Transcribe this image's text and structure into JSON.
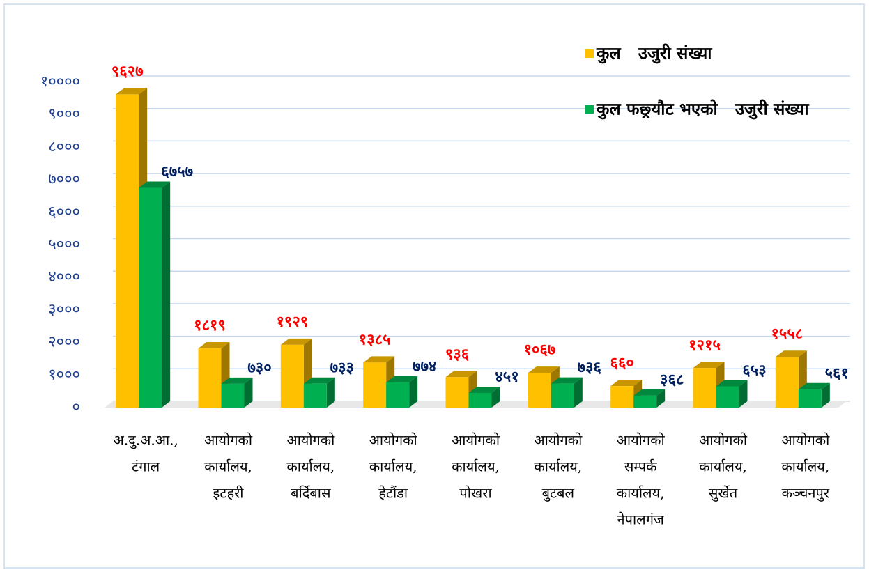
{
  "chart_data": {
    "type": "bar3d",
    "categories": [
      [
        "अ.दु.अ.आ.,",
        "टंगाल"
      ],
      [
        "आयोगको",
        "कार्यालय,",
        "इटहरी"
      ],
      [
        "आयोगको",
        "कार्यालय,",
        "बर्दिबास"
      ],
      [
        "आयोगको",
        "कार्यालय,",
        "हेटौंडा"
      ],
      [
        "आयोगको",
        "कार्यालय,",
        "पोखरा"
      ],
      [
        "आयोगको",
        "कार्यालय,",
        "बुटबल"
      ],
      [
        "आयोगको",
        "सम्पर्क",
        "कार्यालय,",
        "नेपालगंज"
      ],
      [
        "आयोगको",
        "कार्यालय,",
        "सुर्खेत"
      ],
      [
        "आयोगको",
        "कार्यालय,",
        "कञ्चनपुर"
      ]
    ],
    "series": [
      {
        "name": "कुल   उजुरी संख्या",
        "color": "#ffc000",
        "values": [
          9627,
          1819,
          1929,
          1385,
          936,
          1067,
          660,
          1215,
          1558
        ],
        "value_labels": [
          "९६२७",
          "१८१९",
          "१९२९",
          "१३८५",
          "९३६",
          "१०६७",
          "६६०",
          "१२१५",
          "१५५८"
        ],
        "label_color": "#ff0000"
      },
      {
        "name": "कुल फछ्र्यौट भएको   उजुरी संख्या",
        "color": "#00b050",
        "values": [
          6757,
          730,
          733,
          774,
          451,
          736,
          368,
          653,
          561
        ],
        "value_labels": [
          "६७५७",
          "७३०",
          "७३३",
          "७७४",
          "४५१",
          "७३६",
          "३६८",
          "६५३",
          "५६१"
        ],
        "label_color": "#002060"
      }
    ],
    "ylim": [
      0,
      10000
    ],
    "yticks": [
      {
        "value": 0,
        "label": "०"
      },
      {
        "value": 1000,
        "label": "१०००"
      },
      {
        "value": 2000,
        "label": "२०००"
      },
      {
        "value": 3000,
        "label": "३०००"
      },
      {
        "value": 4000,
        "label": "४०००"
      },
      {
        "value": 5000,
        "label": "५०००"
      },
      {
        "value": 6000,
        "label": "६०००"
      },
      {
        "value": 7000,
        "label": "७०००"
      },
      {
        "value": 8000,
        "label": "८०००"
      },
      {
        "value": 9000,
        "label": "९०००"
      },
      {
        "value": 10000,
        "label": "१००००"
      }
    ],
    "grid": true,
    "legend": "top-right"
  }
}
